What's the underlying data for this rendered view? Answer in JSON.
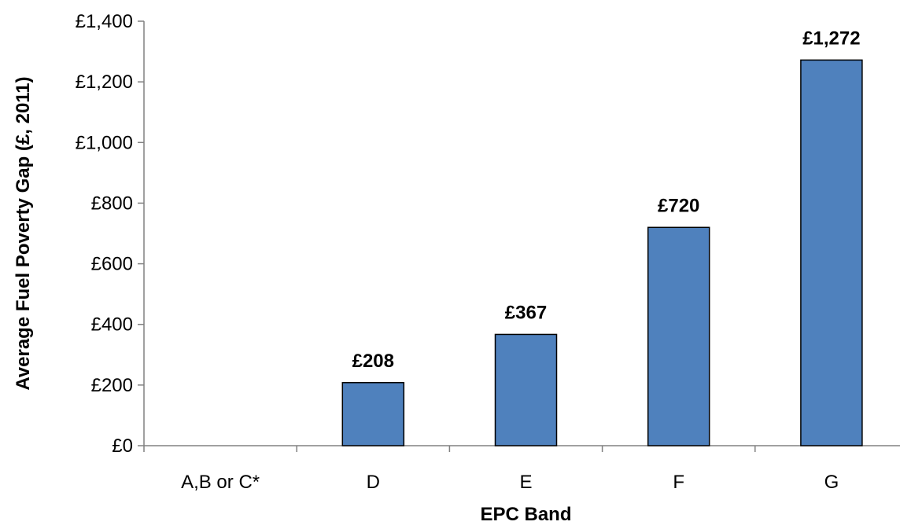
{
  "chart_data": {
    "type": "bar",
    "title": "",
    "xlabel": "EPC Band",
    "ylabel": "Average Fuel Poverty Gap (£, 2011)",
    "categories": [
      "A,B or C*",
      "D",
      "E",
      "F",
      "G"
    ],
    "values": [
      0,
      208,
      367,
      720,
      1272
    ],
    "data_labels": [
      "",
      "£208",
      "£367",
      "£720",
      "£1,272"
    ],
    "ylim": [
      0,
      1400
    ],
    "yticks": [
      0,
      200,
      400,
      600,
      800,
      1000,
      1200,
      1400
    ],
    "ytick_labels": [
      "£0",
      "£200",
      "£400",
      "£600",
      "£800",
      "£1,000",
      "£1,200",
      "£1,400"
    ],
    "grid": false,
    "legend": "none",
    "colors": {
      "bar_fill": "#4f81bd",
      "bar_stroke": "#000000",
      "axis": "#808080"
    }
  }
}
